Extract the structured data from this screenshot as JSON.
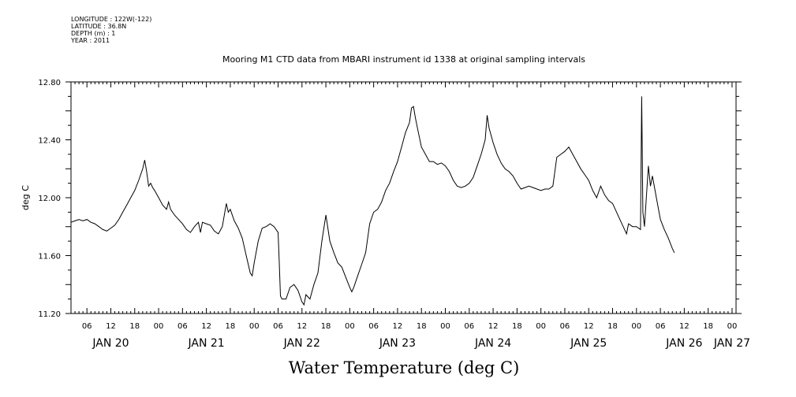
{
  "header": {
    "longitude": "LONGITUDE : 122W(-122)",
    "latitude": "LATITUDE : 36.8N",
    "depth": "DEPTH (m) : 1",
    "year": "YEAR : 2011"
  },
  "chart_data": {
    "type": "line",
    "title": "Mooring M1 CTD data from MBARI instrument id 1338 at original sampling intervals",
    "xlabel": "Water Temperature (deg C)",
    "ylabel": "deg C",
    "xlim_hours": [
      2,
      169
    ],
    "ylim": [
      11.2,
      12.8
    ],
    "y_ticks": [
      11.2,
      11.6,
      12.0,
      12.4,
      12.8
    ],
    "y_tick_labels": [
      "11.20",
      "11.60",
      "12.00",
      "12.40",
      "12.80"
    ],
    "x_tick_hours": [
      6,
      12,
      18,
      24,
      30,
      36,
      42,
      48,
      54,
      60,
      66,
      72,
      78,
      84,
      90,
      96,
      102,
      108,
      114,
      120,
      126,
      132,
      138,
      144,
      150,
      156,
      162,
      168
    ],
    "x_tick_labels": [
      "06",
      "12",
      "18",
      "00",
      "06",
      "12",
      "18",
      "00",
      "06",
      "12",
      "18",
      "00",
      "06",
      "12",
      "18",
      "00",
      "06",
      "12",
      "18",
      "00",
      "06",
      "12",
      "18",
      "00",
      "06",
      "12",
      "18",
      "00"
    ],
    "day_labels": [
      {
        "hour": 12,
        "label": "JAN 20"
      },
      {
        "hour": 36,
        "label": "JAN 21"
      },
      {
        "hour": 60,
        "label": "JAN 22"
      },
      {
        "hour": 84,
        "label": "JAN 23"
      },
      {
        "hour": 108,
        "label": "JAN 24"
      },
      {
        "hour": 132,
        "label": "JAN 25"
      },
      {
        "hour": 156,
        "label": "JAN 26"
      },
      {
        "hour": 168,
        "label": "JAN 27"
      }
    ],
    "x_note": "x in hours after 00:00 Jan 20, 2011",
    "series": [
      {
        "points": [
          [
            2,
            11.83
          ],
          [
            3,
            11.84
          ],
          [
            4,
            11.85
          ],
          [
            5,
            11.84
          ],
          [
            6,
            11.85
          ],
          [
            7,
            11.83
          ],
          [
            8,
            11.82
          ],
          [
            9,
            11.8
          ],
          [
            10,
            11.78
          ],
          [
            11,
            11.77
          ],
          [
            12,
            11.79
          ],
          [
            13,
            11.81
          ],
          [
            14,
            11.85
          ],
          [
            15,
            11.9
          ],
          [
            16,
            11.95
          ],
          [
            17,
            12.0
          ],
          [
            18,
            12.05
          ],
          [
            19,
            12.12
          ],
          [
            20,
            12.2
          ],
          [
            20.5,
            12.26
          ],
          [
            21,
            12.18
          ],
          [
            21.5,
            12.08
          ],
          [
            22,
            12.1
          ],
          [
            22.5,
            12.07
          ],
          [
            23,
            12.05
          ],
          [
            24,
            12.0
          ],
          [
            25,
            11.95
          ],
          [
            26,
            11.92
          ],
          [
            26.5,
            11.97
          ],
          [
            27,
            11.92
          ],
          [
            28,
            11.88
          ],
          [
            29,
            11.85
          ],
          [
            30,
            11.82
          ],
          [
            31,
            11.78
          ],
          [
            32,
            11.76
          ],
          [
            33,
            11.8
          ],
          [
            34,
            11.83
          ],
          [
            34.5,
            11.76
          ],
          [
            35,
            11.83
          ],
          [
            36,
            11.82
          ],
          [
            37,
            11.81
          ],
          [
            38,
            11.77
          ],
          [
            39,
            11.75
          ],
          [
            40,
            11.8
          ],
          [
            41,
            11.96
          ],
          [
            41.5,
            11.9
          ],
          [
            42,
            11.92
          ],
          [
            43,
            11.84
          ],
          [
            44,
            11.79
          ],
          [
            45,
            11.72
          ],
          [
            46,
            11.6
          ],
          [
            47,
            11.48
          ],
          [
            47.5,
            11.46
          ],
          [
            48,
            11.55
          ],
          [
            49,
            11.7
          ],
          [
            50,
            11.79
          ],
          [
            51,
            11.8
          ],
          [
            52,
            11.82
          ],
          [
            53,
            11.8
          ],
          [
            54,
            11.76
          ],
          [
            54.3,
            11.55
          ],
          [
            54.6,
            11.32
          ],
          [
            55,
            11.3
          ],
          [
            56,
            11.3
          ],
          [
            57,
            11.38
          ],
          [
            58,
            11.4
          ],
          [
            59,
            11.36
          ],
          [
            60,
            11.28
          ],
          [
            60.5,
            11.26
          ],
          [
            61,
            11.33
          ],
          [
            62,
            11.3
          ],
          [
            63,
            11.4
          ],
          [
            64,
            11.48
          ],
          [
            65,
            11.7
          ],
          [
            66,
            11.88
          ],
          [
            67,
            11.7
          ],
          [
            68,
            11.62
          ],
          [
            69,
            11.55
          ],
          [
            70,
            11.52
          ],
          [
            71,
            11.45
          ],
          [
            72,
            11.38
          ],
          [
            72.5,
            11.35
          ],
          [
            73,
            11.38
          ],
          [
            74,
            11.46
          ],
          [
            75,
            11.54
          ],
          [
            76,
            11.62
          ],
          [
            77,
            11.82
          ],
          [
            78,
            11.9
          ],
          [
            79,
            11.92
          ],
          [
            80,
            11.97
          ],
          [
            81,
            12.05
          ],
          [
            82,
            12.1
          ],
          [
            83,
            12.18
          ],
          [
            84,
            12.25
          ],
          [
            85,
            12.35
          ],
          [
            86,
            12.45
          ],
          [
            87,
            12.52
          ],
          [
            87.5,
            12.62
          ],
          [
            88,
            12.63
          ],
          [
            88.5,
            12.55
          ],
          [
            89,
            12.48
          ],
          [
            90,
            12.35
          ],
          [
            91,
            12.3
          ],
          [
            92,
            12.25
          ],
          [
            93,
            12.25
          ],
          [
            94,
            12.23
          ],
          [
            95,
            12.24
          ],
          [
            96,
            12.22
          ],
          [
            97,
            12.18
          ],
          [
            98,
            12.12
          ],
          [
            99,
            12.08
          ],
          [
            100,
            12.07
          ],
          [
            101,
            12.08
          ],
          [
            102,
            12.1
          ],
          [
            103,
            12.14
          ],
          [
            104,
            12.22
          ],
          [
            105,
            12.3
          ],
          [
            106,
            12.4
          ],
          [
            106.5,
            12.57
          ],
          [
            107,
            12.48
          ],
          [
            108,
            12.38
          ],
          [
            109,
            12.3
          ],
          [
            110,
            12.24
          ],
          [
            111,
            12.2
          ],
          [
            112,
            12.18
          ],
          [
            113,
            12.15
          ],
          [
            114,
            12.1
          ],
          [
            115,
            12.06
          ],
          [
            116,
            12.07
          ],
          [
            117,
            12.08
          ],
          [
            118,
            12.07
          ],
          [
            119,
            12.06
          ],
          [
            120,
            12.05
          ],
          [
            121,
            12.06
          ],
          [
            122,
            12.06
          ],
          [
            123,
            12.08
          ],
          [
            124,
            12.28
          ],
          [
            125,
            12.3
          ],
          [
            126,
            12.32
          ],
          [
            127,
            12.35
          ],
          [
            128,
            12.3
          ],
          [
            129,
            12.25
          ],
          [
            130,
            12.2
          ],
          [
            131,
            12.16
          ],
          [
            132,
            12.12
          ],
          [
            133,
            12.05
          ],
          [
            134,
            12.0
          ],
          [
            135,
            12.08
          ],
          [
            136,
            12.02
          ],
          [
            137,
            11.98
          ],
          [
            138,
            11.96
          ],
          [
            139,
            11.9
          ],
          [
            140,
            11.84
          ],
          [
            141,
            11.78
          ],
          [
            141.5,
            11.75
          ],
          [
            142,
            11.82
          ],
          [
            143,
            11.8
          ],
          [
            144,
            11.8
          ],
          [
            145,
            11.78
          ],
          [
            145.3,
            12.7
          ],
          [
            145.6,
            11.9
          ],
          [
            146,
            11.8
          ],
          [
            147,
            12.22
          ],
          [
            147.5,
            12.08
          ],
          [
            148,
            12.15
          ],
          [
            149,
            12.0
          ],
          [
            150,
            11.85
          ],
          [
            151,
            11.78
          ],
          [
            152,
            11.72
          ],
          [
            153,
            11.65
          ],
          [
            153.5,
            11.62
          ]
        ]
      }
    ],
    "colors": {
      "line": "#000000",
      "axis": "#000000",
      "background": "#ffffff"
    }
  }
}
